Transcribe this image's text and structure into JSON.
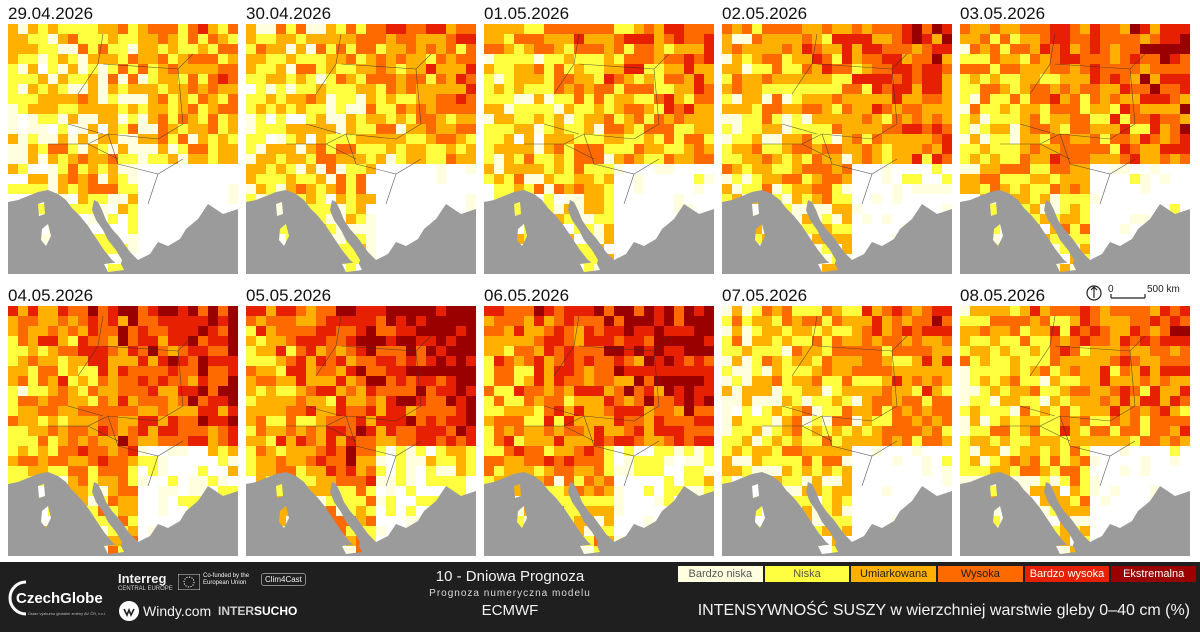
{
  "panels": [
    {
      "date": "29.04.2026",
      "level": 0.55
    },
    {
      "date": "30.04.2026",
      "level": 0.58
    },
    {
      "date": "01.05.2026",
      "level": 0.62
    },
    {
      "date": "02.05.2026",
      "level": 0.66
    },
    {
      "date": "03.05.2026",
      "level": 0.7
    },
    {
      "date": "04.05.2026",
      "level": 0.78
    },
    {
      "date": "05.05.2026",
      "level": 0.82
    },
    {
      "date": "06.05.2026",
      "level": 0.8
    },
    {
      "date": "07.05.2026",
      "level": 0.62
    },
    {
      "date": "08.05.2026",
      "level": 0.66
    }
  ],
  "scale": {
    "zero": "0",
    "label": "500 km"
  },
  "footer": {
    "logos": {
      "czechglobe": "CzechGlobe",
      "czechglobe_sub": "Ústav výzkumu globální změny AV ČR, v.v.i.",
      "interreg": "Interreg",
      "interreg_sub": "CENTRAL EUROPE",
      "eu": "Co-funded by the European Union",
      "clim4cast": "Clim4Cast",
      "windy": "Windy.com",
      "intersucho_a": "INTER",
      "intersucho_b": "SUCHO"
    },
    "title": "10 - Dniowa Prognoza",
    "subtitle": "Prognoza numeryczna modelu",
    "model": "ECMWF",
    "legend_title": "INTENSYWNOŚĆ SUSZY w wierzchniej warstwie gleby 0–40 cm (%)",
    "legend": [
      {
        "label": "Bardzo niska",
        "color": "#ffffe0"
      },
      {
        "label": "Niska",
        "color": "#ffff40"
      },
      {
        "label": "Umiarkowana",
        "color": "#ffb000"
      },
      {
        "label": "Wysoka",
        "color": "#ff6a00"
      },
      {
        "label": "Bardzo wysoka",
        "color": "#e62000"
      },
      {
        "label": "Ekstremalna",
        "color": "#9a0000"
      }
    ]
  },
  "colors": {
    "sea": "#9b9b9b",
    "nodata": "#ffffff"
  }
}
